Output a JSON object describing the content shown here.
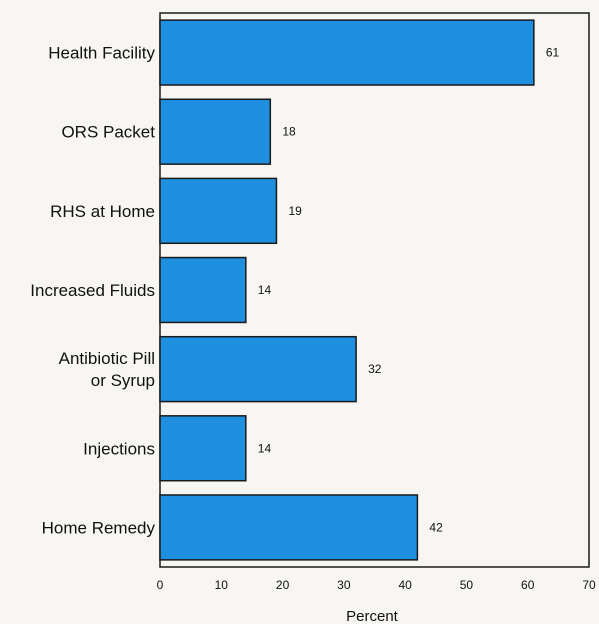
{
  "chart_data": {
    "type": "bar",
    "orientation": "horizontal",
    "categories": [
      "Health Facility",
      "ORS Packet",
      "RHS at Home",
      "Increased Fluids",
      "Antibiotic Pill\nor Syrup",
      "Injections",
      "Home Remedy"
    ],
    "values": [
      61,
      18,
      19,
      14,
      32,
      14,
      42
    ],
    "data_labels": [
      "61",
      "18",
      "19",
      "14",
      "32",
      "14",
      "42"
    ],
    "xlabel": "Percent",
    "xlim": [
      0,
      70
    ],
    "xticks": [
      0,
      10,
      20,
      30,
      40,
      50,
      60,
      70
    ],
    "grid": false,
    "bar_color": "#1f8fe0",
    "bar_edge_color": "#1a1a1a"
  }
}
